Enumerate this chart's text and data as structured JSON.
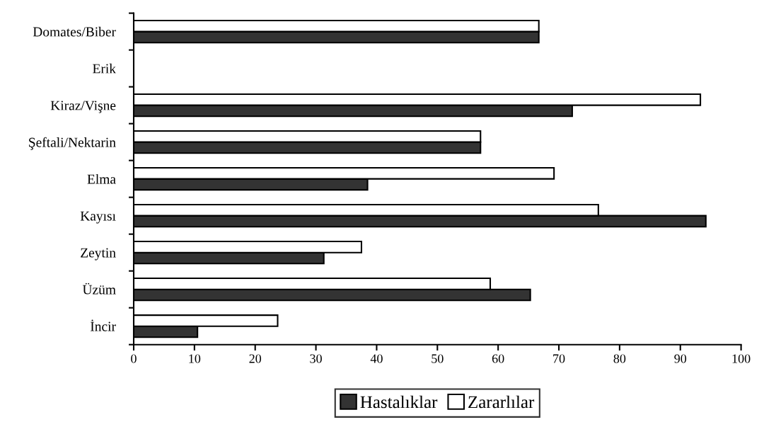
{
  "chart_data": {
    "type": "bar",
    "orientation": "horizontal",
    "categories": [
      "Domates/Biber",
      "Erik",
      "Kiraz/Vişne",
      "Şeftali/Nektarin",
      "Elma",
      "Kayısı",
      "Zeytin",
      "Üzüm",
      "İncir"
    ],
    "series": [
      {
        "name": "Hastalıklar",
        "color": "#333333",
        "values": [
          66.7,
          null,
          72.2,
          57.1,
          38.5,
          94.2,
          31.3,
          65.3,
          10.5
        ]
      },
      {
        "name": "Zararlılar",
        "color": "#ffffff",
        "values": [
          66.7,
          null,
          93.3,
          57.1,
          69.2,
          76.5,
          37.5,
          58.7,
          23.7
        ]
      }
    ],
    "xlim": [
      0,
      100
    ],
    "xticks": [
      0,
      10,
      20,
      30,
      40,
      50,
      60,
      70,
      80,
      90,
      100
    ],
    "grid": false,
    "legend": "bottom"
  }
}
